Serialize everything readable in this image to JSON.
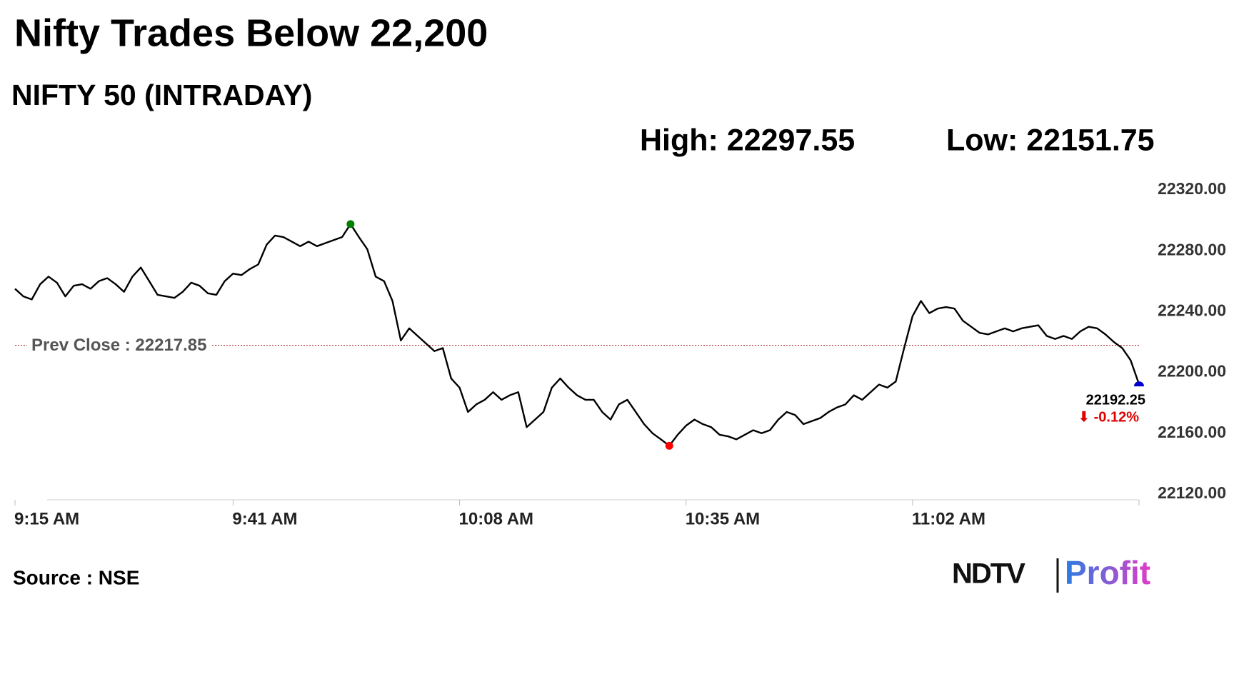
{
  "chart_data": {
    "type": "line",
    "title": "Nifty Trades Below 22,200",
    "subtitle": "NIFTY 50 (INTRADAY)",
    "high": "High: 22297.55",
    "low": "Low: 22151.75",
    "x": [
      "9:15 AM",
      "9:16 AM",
      "9:17 AM",
      "9:18 AM",
      "9:19 AM",
      "9:20 AM",
      "9:21 AM",
      "9:22 AM",
      "9:23 AM",
      "9:24 AM",
      "9:25 AM",
      "9:26 AM",
      "9:27 AM",
      "9:28 AM",
      "9:29 AM",
      "9:30 AM",
      "9:31 AM",
      "9:32 AM",
      "9:33 AM",
      "9:34 AM",
      "9:35 AM",
      "9:36 AM",
      "9:37 AM",
      "9:38 AM",
      "9:39 AM",
      "9:40 AM",
      "9:41 AM",
      "9:42 AM",
      "9:43 AM",
      "9:44 AM",
      "9:45 AM",
      "9:46 AM",
      "9:47 AM",
      "9:48 AM",
      "9:49 AM",
      "9:50 AM",
      "9:51 AM",
      "9:52 AM",
      "9:53 AM",
      "9:54 AM",
      "9:55 AM",
      "9:56 AM",
      "9:57 AM",
      "9:58 AM",
      "9:59 AM",
      "10:00 AM",
      "10:01 AM",
      "10:02 AM",
      "10:03 AM",
      "10:04 AM",
      "10:05 AM",
      "10:06 AM",
      "10:07 AM",
      "10:08 AM",
      "10:09 AM",
      "10:10 AM",
      "10:11 AM",
      "10:12 AM",
      "10:13 AM",
      "10:14 AM",
      "10:15 AM",
      "10:16 AM",
      "10:17 AM",
      "10:18 AM",
      "10:19 AM",
      "10:20 AM",
      "10:21 AM",
      "10:22 AM",
      "10:23 AM",
      "10:24 AM",
      "10:25 AM",
      "10:26 AM",
      "10:27 AM",
      "10:28 AM",
      "10:29 AM",
      "10:30 AM",
      "10:31 AM",
      "10:32 AM",
      "10:33 AM",
      "10:34 AM",
      "10:35 AM",
      "10:36 AM",
      "10:37 AM",
      "10:38 AM",
      "10:39 AM",
      "10:40 AM",
      "10:41 AM",
      "10:42 AM",
      "10:43 AM",
      "10:44 AM",
      "10:45 AM",
      "10:46 AM",
      "10:47 AM",
      "10:48 AM",
      "10:49 AM",
      "10:50 AM",
      "10:51 AM",
      "10:52 AM",
      "10:53 AM",
      "10:54 AM",
      "10:55 AM",
      "10:56 AM",
      "10:57 AM",
      "10:58 AM",
      "10:59 AM",
      "11:00 AM",
      "11:01 AM",
      "11:02 AM",
      "11:03 AM",
      "11:04 AM",
      "11:05 AM",
      "11:06 AM",
      "11:07 AM",
      "11:08 AM",
      "11:09 AM",
      "11:10 AM",
      "11:11 AM",
      "11:12 AM",
      "11:13 AM",
      "11:14 AM",
      "11:15 AM",
      "11:16 AM",
      "11:17 AM",
      "11:18 AM",
      "11:19 AM",
      "11:20 AM",
      "11:21 AM",
      "11:22 AM",
      "11:23 AM",
      "11:24 AM",
      "11:25 AM",
      "11:26 AM",
      "11:27 AM",
      "11:28 AM",
      "11:29 AM"
    ],
    "series": [
      {
        "name": "NIFTY 50",
        "color": "#000000",
        "values": [
          22255,
          22250,
          22248,
          22258,
          22263,
          22259,
          22250,
          22257,
          22258,
          22255,
          22260,
          22262,
          22258,
          22253,
          22263,
          22269,
          22260,
          22251,
          22250,
          22249,
          22253,
          22259,
          22257,
          22252,
          22251,
          22260,
          22265,
          22264,
          22268,
          22271,
          22284,
          22290,
          22289,
          22286,
          22283,
          22286,
          22283,
          22285,
          22287,
          22289,
          22297.55,
          22289,
          22281,
          22263,
          22260,
          22247,
          22221,
          22229,
          22224,
          22219,
          22214,
          22216,
          22196,
          22190,
          22174,
          22179,
          22182,
          22187,
          22182,
          22185,
          22187,
          22164,
          22169,
          22174,
          22190,
          22196,
          22190,
          22185,
          22182,
          22182,
          22174,
          22169,
          22179,
          22182,
          22174,
          22166,
          22160,
          22156,
          22151.75,
          22159,
          22165,
          22169,
          22166,
          22164,
          22159,
          22158,
          22156,
          22159,
          22162,
          22160,
          22162,
          22169,
          22174,
          22172,
          22166,
          22168,
          22170,
          22174,
          22177,
          22179,
          22185,
          22182,
          22187,
          22192,
          22190,
          22194,
          22216,
          22237,
          22247,
          22239,
          22242,
          22243,
          22242,
          22234,
          22230,
          22226,
          22225,
          22227,
          22229,
          22227,
          22229,
          22230,
          22231,
          22224,
          22222,
          22224,
          22222,
          22227,
          22230,
          22229,
          22225,
          22220,
          22216,
          22208,
          22192.25
        ]
      }
    ],
    "high_color": "#008000",
    "low_color": "#ff0000",
    "last_color": "#0000cc",
    "last_label": "22192.25",
    "change_label": "⬇ -0.12%",
    "prev_close": {
      "value": 22217.85,
      "label": "Prev Close : 22217.85",
      "color": "#b03030"
    },
    "xticks": [
      "9:15 AM",
      "9:41 AM",
      "10:08 AM",
      "10:35 AM",
      "11:02 AM"
    ],
    "ylim": [
      22120,
      22320
    ],
    "yticks": [
      {
        "value": 22120,
        "label": "22120.00"
      },
      {
        "value": 22160,
        "label": "22160.00"
      },
      {
        "value": 22200,
        "label": "22200.00"
      },
      {
        "value": 22240,
        "label": "22240.00"
      },
      {
        "value": 22280,
        "label": "22280.00"
      },
      {
        "value": 22320,
        "label": "22320.00"
      }
    ],
    "grid": false,
    "source": "Source : NSE",
    "logo": {
      "brand": "NDTV",
      "product": "Profit"
    }
  }
}
